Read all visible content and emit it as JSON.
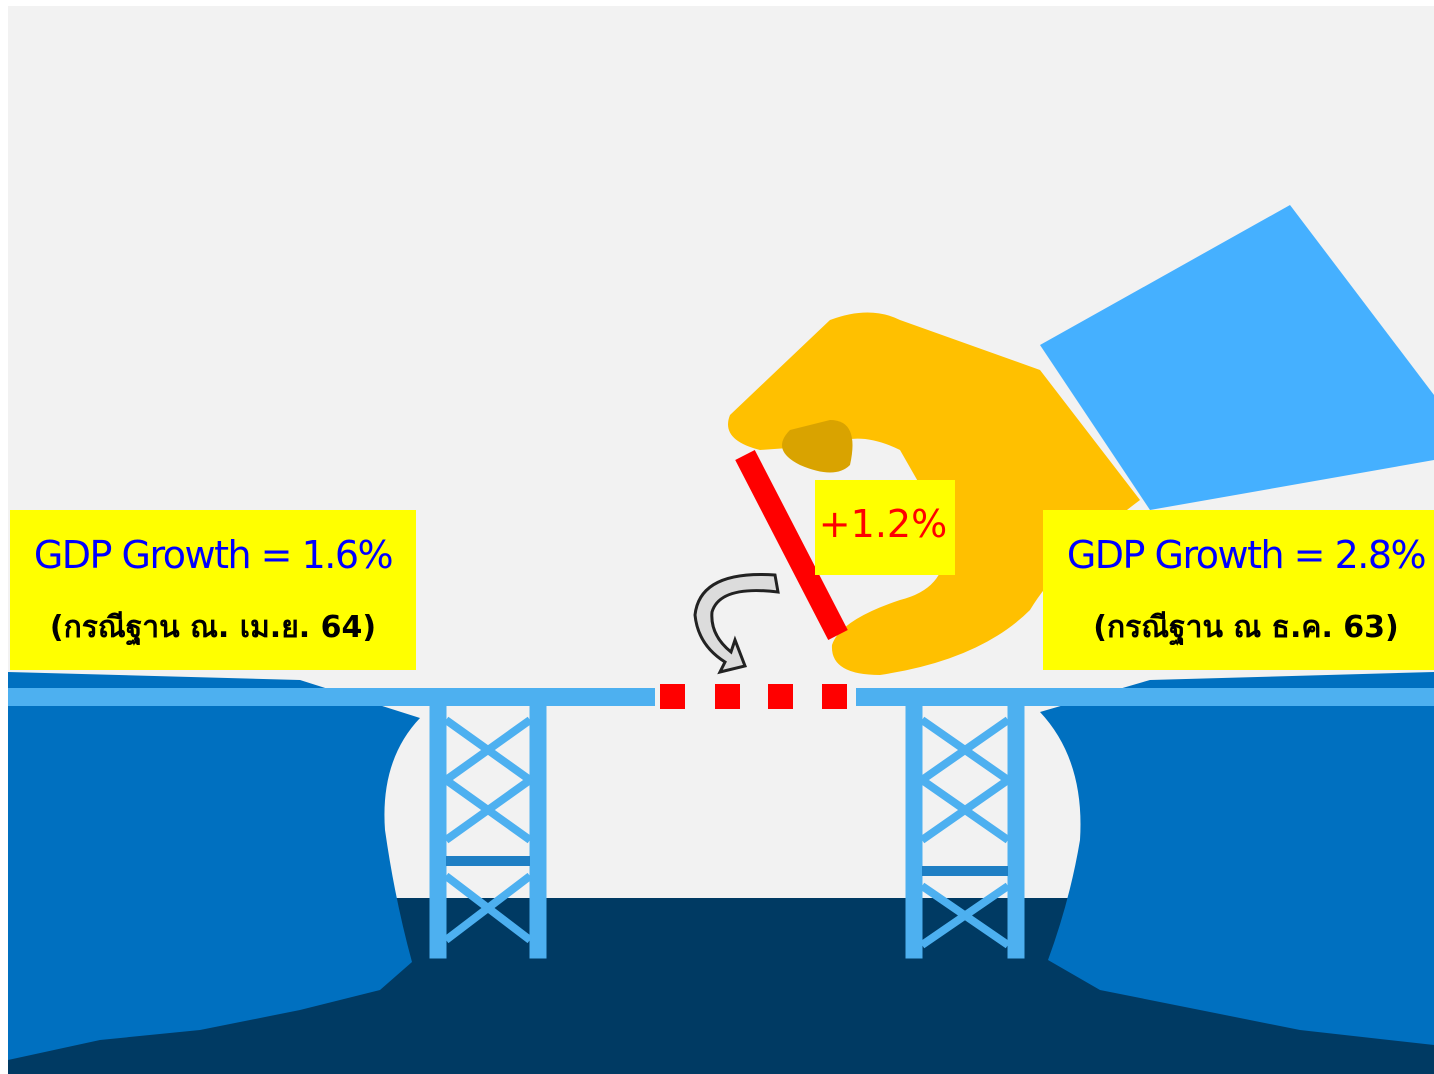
{
  "left_box": {
    "title": "GDP Growth = 1.6%",
    "subtitle": "(กรณีฐาน ณ. เม.ย. 64)"
  },
  "right_box": {
    "title": "GDP Growth = 2.8%",
    "subtitle": "(กรณีฐาน ณ ธ.ค. 63)"
  },
  "change_label": "+1.2%"
}
